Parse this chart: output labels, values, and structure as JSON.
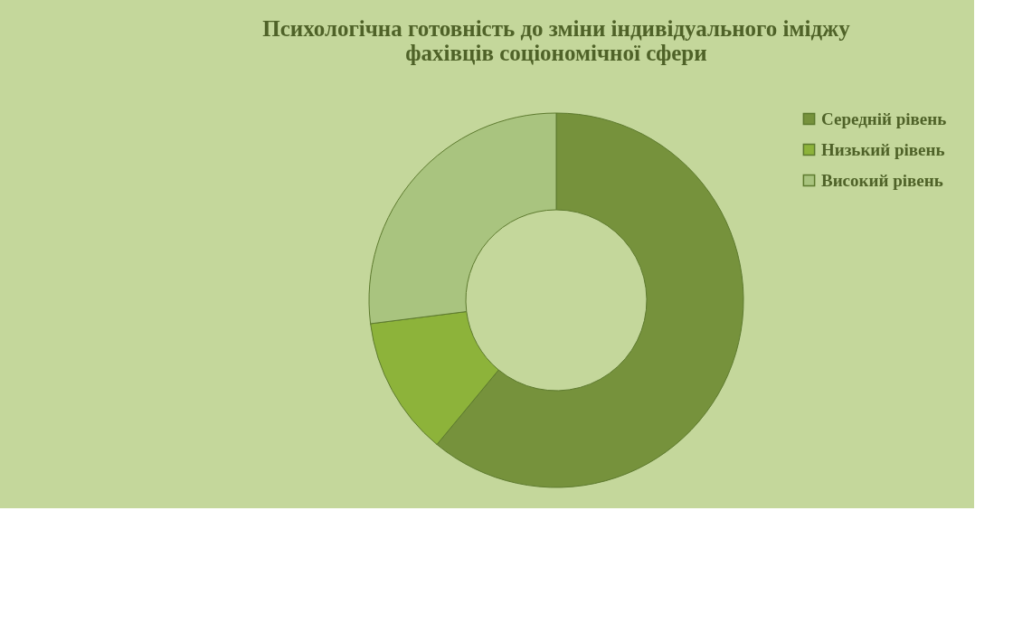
{
  "chart_data": {
    "type": "donut",
    "title": "Психологічна готовність до зміни індивідуального іміджу\nфахівців соціономічної сфери",
    "categories": [
      "Середній рівень",
      "Низький рівень",
      "Високий рівень"
    ],
    "values": [
      61,
      12,
      27
    ],
    "colors": [
      "#76923c",
      "#8db33a",
      "#a9c47f"
    ],
    "legend": "right"
  }
}
